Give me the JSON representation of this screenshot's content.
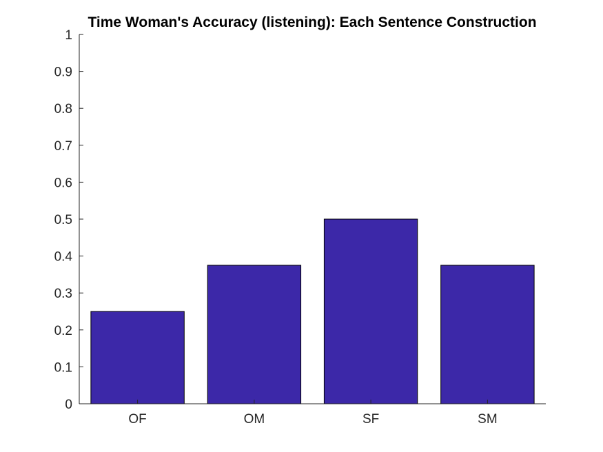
{
  "chart_data": {
    "type": "bar",
    "title": "Time Woman's Accuracy (listening): Each Sentence Construction",
    "categories": [
      "OF",
      "OM",
      "SF",
      "SM"
    ],
    "values": [
      0.25,
      0.375,
      0.5,
      0.375
    ],
    "xlabel": "",
    "ylabel": "",
    "ylim": [
      0,
      1
    ],
    "yticks": [
      "0",
      "0.1",
      "0.2",
      "0.3",
      "0.4",
      "0.5",
      "0.6",
      "0.7",
      "0.8",
      "0.9",
      "1"
    ],
    "bar_color": "#3C28A8",
    "grid": false,
    "legend": "none"
  }
}
